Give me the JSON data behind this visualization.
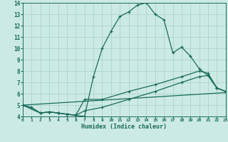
{
  "xlabel": "Humidex (Indice chaleur)",
  "xlim": [
    0,
    23
  ],
  "ylim": [
    4,
    14
  ],
  "yticks": [
    4,
    5,
    6,
    7,
    8,
    9,
    10,
    11,
    12,
    13,
    14
  ],
  "xticks": [
    0,
    1,
    2,
    3,
    4,
    5,
    6,
    7,
    8,
    9,
    10,
    11,
    12,
    13,
    14,
    15,
    16,
    17,
    18,
    19,
    20,
    21,
    22,
    23
  ],
  "bg_color": "#cceae4",
  "line_color": "#1a6b5a",
  "grid_color": "#aad4cc",
  "line1_x": [
    0,
    1,
    2,
    3,
    4,
    5,
    6,
    7,
    8,
    9,
    10,
    11,
    12,
    13,
    14,
    15,
    16,
    17,
    18,
    19,
    20,
    21,
    22,
    23
  ],
  "line1_y": [
    5.0,
    4.8,
    4.3,
    4.4,
    4.3,
    4.2,
    4.1,
    4.0,
    7.5,
    10.0,
    11.5,
    12.8,
    13.2,
    13.8,
    14.0,
    13.0,
    12.5,
    9.6,
    10.1,
    9.3,
    8.2,
    7.6,
    6.5,
    6.2
  ],
  "line2_x": [
    0,
    2,
    3,
    4,
    5,
    6,
    7,
    9,
    12,
    15,
    18,
    20,
    21,
    22,
    23
  ],
  "line2_y": [
    5.0,
    4.3,
    4.4,
    4.3,
    4.2,
    4.1,
    5.5,
    5.5,
    6.2,
    6.8,
    7.5,
    8.0,
    7.8,
    6.5,
    6.2
  ],
  "line3_x": [
    0,
    2,
    3,
    4,
    5,
    6,
    7,
    9,
    12,
    15,
    18,
    20,
    21,
    22,
    23
  ],
  "line3_y": [
    5.0,
    4.3,
    4.4,
    4.3,
    4.2,
    4.1,
    4.5,
    4.8,
    5.5,
    6.2,
    7.0,
    7.5,
    7.6,
    6.5,
    6.2
  ],
  "line4_x": [
    0,
    23
  ],
  "line4_y": [
    5.0,
    6.1
  ],
  "marker": "+"
}
